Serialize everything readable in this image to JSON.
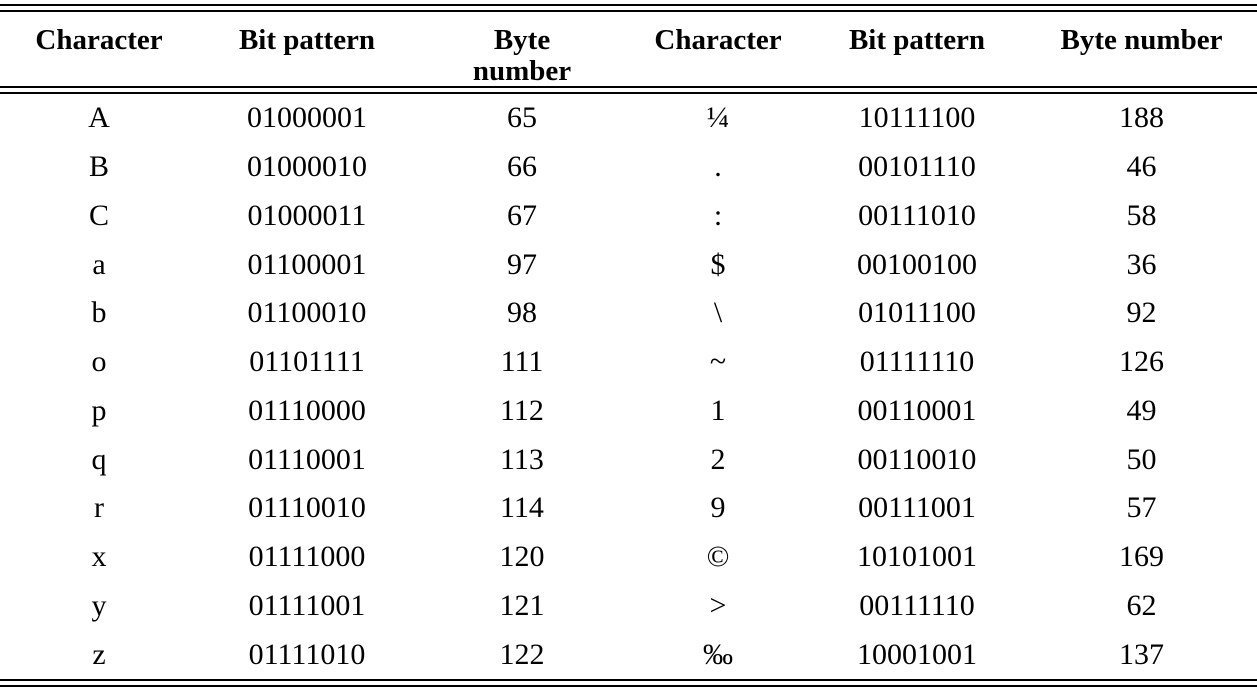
{
  "table": {
    "headers": [
      "Character",
      "Bit pattern",
      "Byte number",
      "Character",
      "Bit pattern",
      "Byte number"
    ],
    "rows": [
      [
        "A",
        "01000001",
        "65",
        "¼",
        "10111100",
        "188"
      ],
      [
        "B",
        "01000010",
        "66",
        ".",
        "00101110",
        "46"
      ],
      [
        "C",
        "01000011",
        "67",
        ":",
        "00111010",
        "58"
      ],
      [
        "a",
        "01100001",
        "97",
        "$",
        "00100100",
        "36"
      ],
      [
        "b",
        "01100010",
        "98",
        "\\",
        "01011100",
        "92"
      ],
      [
        "o",
        "01101111",
        "111",
        "~",
        "01111110",
        "126"
      ],
      [
        "p",
        "01110000",
        "112",
        "1",
        "00110001",
        "49"
      ],
      [
        "q",
        "01110001",
        "113",
        "2",
        "00110010",
        "50"
      ],
      [
        "r",
        "01110010",
        "114",
        "9",
        "00111001",
        "57"
      ],
      [
        "x",
        "01111000",
        "120",
        "©",
        "10101001",
        "169"
      ],
      [
        "y",
        "01111001",
        "121",
        ">",
        "00111110",
        "62"
      ],
      [
        "z",
        "01111010",
        "122",
        "‰",
        "10001001",
        "137"
      ]
    ],
    "text_color": "#000000",
    "background_color": "#ffffff"
  }
}
